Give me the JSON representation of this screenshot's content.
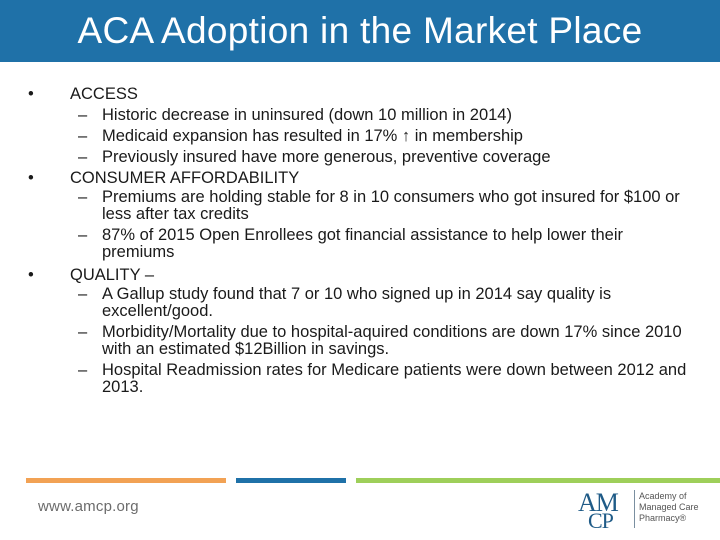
{
  "slide": {
    "title": "ACA Adoption in the Market Place"
  },
  "bullets": [
    {
      "label": "ACCESS",
      "items": [
        "Historic decrease in uninsured (down 10 million in 2014)",
        "Medicaid expansion has resulted in 17% ↑ in membership",
        "Previously insured have more generous, preventive coverage"
      ]
    },
    {
      "label": "CONSUMER AFFORDABILITY",
      "items": [
        "Premiums are holding stable for 8 in 10 consumers who got insured for $100 or less after tax credits",
        "87% of 2015 Open Enrollees got financial assistance to help lower their premiums"
      ]
    },
    {
      "label": "QUALITY –",
      "items": [
        "A Gallup study found that 7 or 10 who signed up in 2014 say quality is excellent/good.",
        "Morbidity/Mortality due to hospital-aquired conditions are down 17% since 2010 with an estimated $12Billion in savings.",
        "Hospital Readmission rates for Medicare patients were down between 2012 and 2013."
      ]
    }
  ],
  "symbols": {
    "bullet": "•",
    "dash": "–"
  },
  "footer": {
    "url": "www.amcp.org",
    "logo_am": "AM",
    "logo_cp": "CP",
    "logo_text": [
      "Academy of",
      "Managed Care",
      "Pharmacy®"
    ]
  },
  "colors": {
    "title_bar": "#1f71a8",
    "accent_orange": "#f2a254",
    "accent_blue": "#1f71a8",
    "accent_green": "#9ecf5a"
  }
}
